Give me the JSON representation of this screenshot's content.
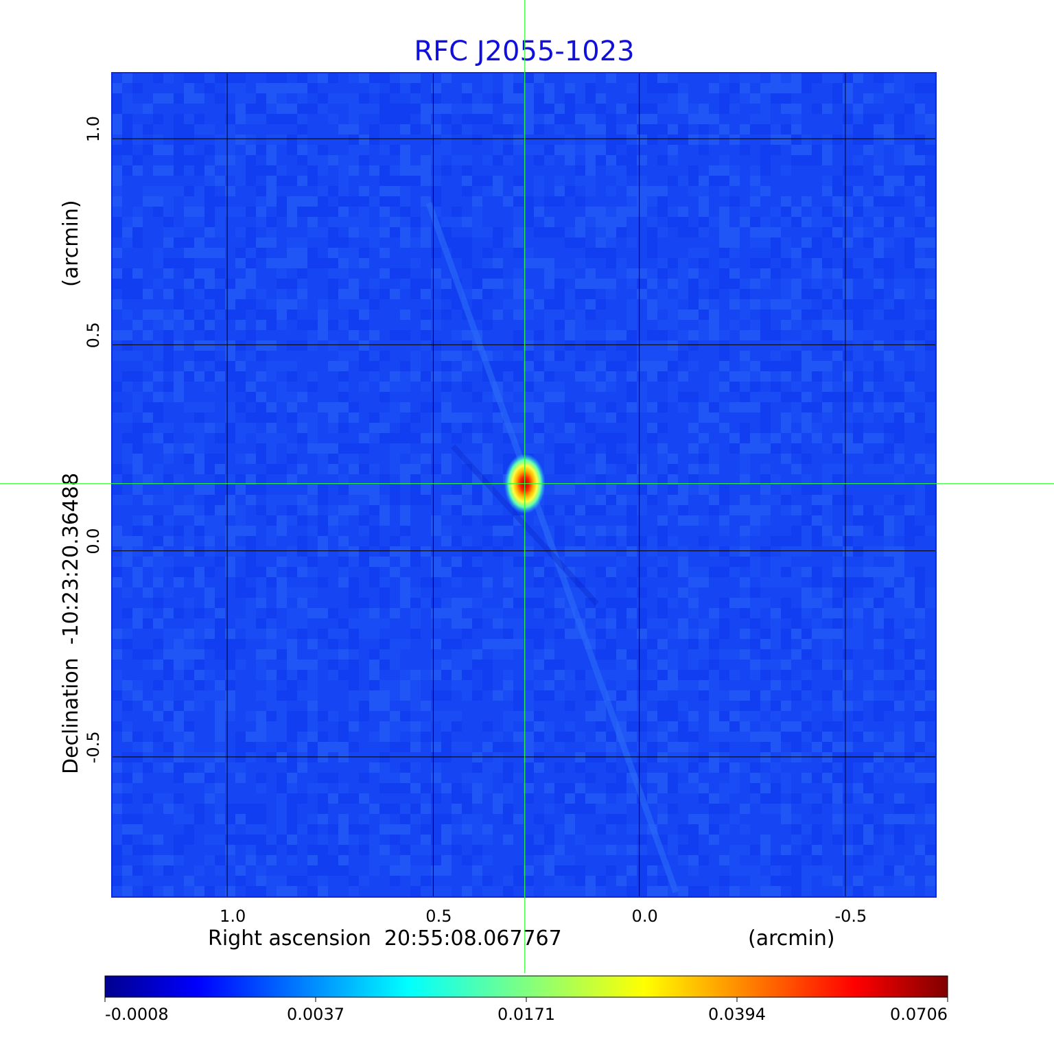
{
  "chart_data": {
    "type": "heatmap",
    "title": "RFC J2055-1023",
    "title_color": "#1010dd",
    "xlabel": "Right ascension  20:55:08.067767",
    "xlabel_unit": "(arcmin)",
    "ylabel": "Declination  -10:23:20.36488",
    "ylabel_unit": "(arcmin)",
    "xlim": [
      1.28,
      -0.72
    ],
    "ylim": [
      -0.84,
      1.16
    ],
    "x_ticks": [
      {
        "value": 1.0,
        "label": "1.0"
      },
      {
        "value": 0.5,
        "label": "0.5"
      },
      {
        "value": 0.0,
        "label": "0.0"
      },
      {
        "value": -0.5,
        "label": "-0.5"
      }
    ],
    "y_ticks": [
      {
        "value": 1.0,
        "label": "1.0"
      },
      {
        "value": 0.5,
        "label": "0.5"
      },
      {
        "value": 0.0,
        "label": "0.0"
      },
      {
        "value": -0.5,
        "label": "-0.5"
      }
    ],
    "grid": true,
    "crosshair": {
      "x": 0.278,
      "y": 0.163
    },
    "crosshair_color": "#33ff33",
    "source": {
      "x": 0.278,
      "y": 0.163,
      "peak": 0.0706
    },
    "colorbar": {
      "colormap": "jet",
      "ticks": [
        "-0.0008",
        "0.0037",
        "0.0171",
        "0.0394",
        "0.0706"
      ]
    }
  }
}
